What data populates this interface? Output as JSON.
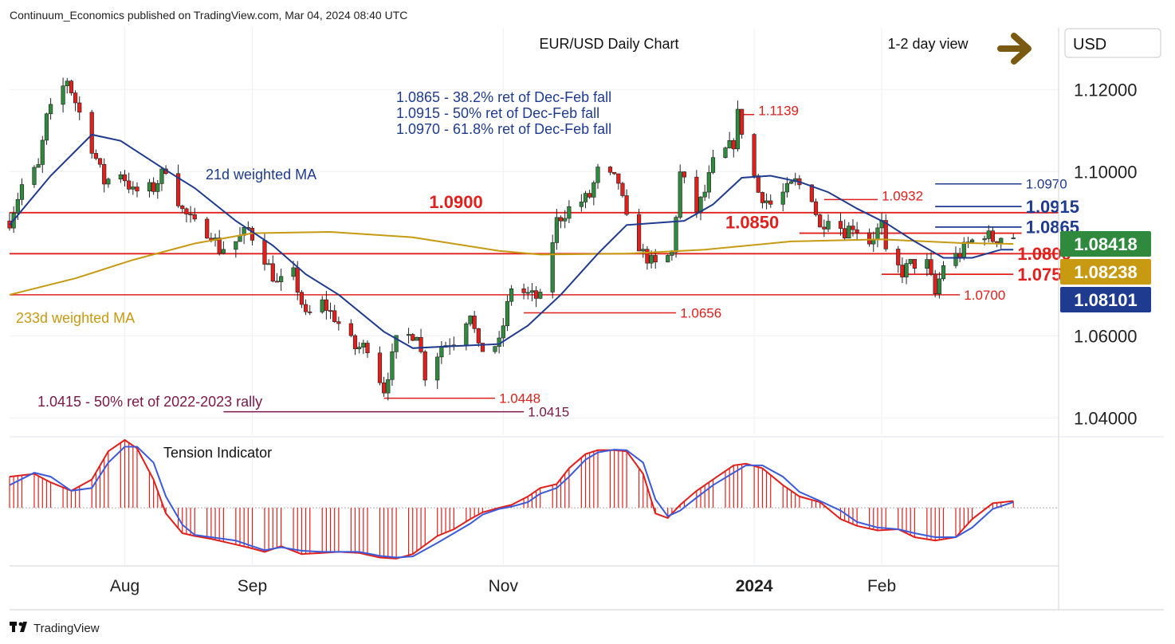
{
  "header": {
    "publisher": "Continuum_Economics published on TradingView.com, Mar 04, 2024 08:40 UTC"
  },
  "footer": {
    "brand": "TradingView"
  },
  "colors": {
    "red": "#e0201c",
    "navy": "#1f3b8f",
    "gold": "#c79a12",
    "maroon": "#7a1748",
    "up": "#2f8a3e",
    "arrow": "#7a5a10"
  },
  "icons": [
    "tradingview-logo-icon",
    "right-arrow-icon"
  ],
  "chart_data": {
    "type": "candlestick",
    "title": "EUR/USD Daily Chart",
    "view_label": "1-2 day view",
    "currency": "USD",
    "ylim": [
      1.036,
      1.135
    ],
    "yticks": [
      {
        "value": 1.12,
        "label": "1.12000"
      },
      {
        "value": 1.1,
        "label": "1.10000"
      },
      {
        "value": 1.06,
        "label": "1.06000"
      },
      {
        "value": 1.04,
        "label": "1.04000"
      }
    ],
    "xticks": [
      {
        "date": "2023-08-01",
        "label": "Aug",
        "bold": false
      },
      {
        "date": "2023-09-01",
        "label": "Sep",
        "bold": false
      },
      {
        "date": "2023-11-01",
        "label": "Nov",
        "bold": false
      },
      {
        "date": "2024-01-01",
        "label": "2024",
        "bold": true
      },
      {
        "date": "2024-02-01",
        "label": "Feb",
        "bold": false
      }
    ],
    "x_start": "2023-07-04",
    "x_end": "2024-03-15",
    "close_path": [
      [
        "2023-07-04",
        1.088
      ],
      [
        "2023-07-07",
        1.0967
      ],
      [
        "2023-07-11",
        1.101
      ],
      [
        "2023-07-13",
        1.113
      ],
      [
        "2023-07-18",
        1.1225
      ],
      [
        "2023-07-20",
        1.117
      ],
      [
        "2023-07-24",
        1.106
      ],
      [
        "2023-07-27",
        1.0975
      ],
      [
        "2023-07-31",
        1.1
      ],
      [
        "2023-08-03",
        1.095
      ],
      [
        "2023-08-08",
        1.096
      ],
      [
        "2023-08-11",
        1.101
      ],
      [
        "2023-08-15",
        1.0905
      ],
      [
        "2023-08-18",
        1.087
      ],
      [
        "2023-08-22",
        1.085
      ],
      [
        "2023-08-24",
        1.081
      ],
      [
        "2023-08-28",
        1.083
      ],
      [
        "2023-08-31",
        1.086
      ],
      [
        "2023-09-04",
        1.079
      ],
      [
        "2023-09-07",
        1.0725
      ],
      [
        "2023-09-11",
        1.075
      ],
      [
        "2023-09-14",
        1.0645
      ],
      [
        "2023-09-18",
        1.068
      ],
      [
        "2023-09-21",
        1.0645
      ],
      [
        "2023-09-26",
        1.057
      ],
      [
        "2023-09-29",
        1.0575
      ],
      [
        "2023-10-03",
        1.047
      ],
      [
        "2023-10-06",
        1.0585
      ],
      [
        "2023-10-11",
        1.061
      ],
      [
        "2023-10-13",
        1.0505
      ],
      [
        "2023-10-17",
        1.0575
      ],
      [
        "2023-10-20",
        1.059
      ],
      [
        "2023-10-24",
        1.066
      ],
      [
        "2023-10-26",
        1.0565
      ],
      [
        "2023-10-31",
        1.058
      ],
      [
        "2023-11-03",
        1.072
      ],
      [
        "2023-11-07",
        1.07
      ],
      [
        "2023-11-10",
        1.069
      ],
      [
        "2023-11-14",
        1.088
      ],
      [
        "2023-11-17",
        1.091
      ],
      [
        "2023-11-22",
        1.094
      ],
      [
        "2023-11-24",
        1.1
      ],
      [
        "2023-11-29",
        1.0975
      ],
      [
        "2023-12-01",
        1.088
      ],
      [
        "2023-12-05",
        1.08
      ],
      [
        "2023-12-08",
        1.077
      ],
      [
        "2023-12-12",
        1.08
      ],
      [
        "2023-12-14",
        1.0995
      ],
      [
        "2023-12-18",
        1.0905
      ],
      [
        "2023-12-20",
        1.095
      ],
      [
        "2023-12-22",
        1.102
      ],
      [
        "2023-12-27",
        1.107
      ],
      [
        "2023-12-28",
        1.1139
      ],
      [
        "2024-01-02",
        1.095
      ],
      [
        "2024-01-05",
        1.092
      ],
      [
        "2024-01-09",
        1.0955
      ],
      [
        "2024-01-11",
        1.0975
      ],
      [
        "2024-01-15",
        1.094
      ],
      [
        "2024-01-17",
        1.086
      ],
      [
        "2024-01-19",
        1.0895
      ],
      [
        "2024-01-23",
        1.0855
      ],
      [
        "2024-01-25",
        1.087
      ],
      [
        "2024-01-29",
        1.083
      ],
      [
        "2024-02-01",
        1.087
      ],
      [
        "2024-02-02",
        1.0795
      ],
      [
        "2024-02-06",
        1.0755
      ],
      [
        "2024-02-08",
        1.0775
      ],
      [
        "2024-02-12",
        1.0775
      ],
      [
        "2024-02-14",
        1.07
      ],
      [
        "2024-02-16",
        1.0775
      ],
      [
        "2024-02-20",
        1.08
      ],
      [
        "2024-02-22",
        1.0825
      ],
      [
        "2024-02-26",
        1.085
      ],
      [
        "2024-02-28",
        1.0835
      ],
      [
        "2024-03-01",
        1.0842
      ],
      [
        "2024-03-04",
        1.0842
      ]
    ],
    "ma21_path": [
      [
        "2023-07-04",
        1.087
      ],
      [
        "2023-07-14",
        1.099
      ],
      [
        "2023-07-24",
        1.109
      ],
      [
        "2023-07-31",
        1.1075
      ],
      [
        "2023-08-10",
        1.101
      ],
      [
        "2023-08-18",
        1.096
      ],
      [
        "2023-08-28",
        1.088
      ],
      [
        "2023-09-06",
        1.082
      ],
      [
        "2023-09-14",
        1.075
      ],
      [
        "2023-09-22",
        1.07
      ],
      [
        "2023-10-03",
        1.061
      ],
      [
        "2023-10-10",
        1.057
      ],
      [
        "2023-10-20",
        1.0575
      ],
      [
        "2023-10-31",
        1.058
      ],
      [
        "2023-11-07",
        1.0625
      ],
      [
        "2023-11-15",
        1.07
      ],
      [
        "2023-11-24",
        1.08
      ],
      [
        "2023-12-01",
        1.087
      ],
      [
        "2023-12-08",
        1.0875
      ],
      [
        "2023-12-15",
        1.088
      ],
      [
        "2023-12-22",
        1.092
      ],
      [
        "2023-12-29",
        1.0985
      ],
      [
        "2024-01-05",
        1.099
      ],
      [
        "2024-01-12",
        1.0975
      ],
      [
        "2024-01-19",
        1.095
      ],
      [
        "2024-01-26",
        1.091
      ],
      [
        "2024-02-02",
        1.0875
      ],
      [
        "2024-02-09",
        1.083
      ],
      [
        "2024-02-16",
        1.079
      ],
      [
        "2024-02-23",
        1.079
      ],
      [
        "2024-03-01",
        1.081
      ],
      [
        "2024-03-04",
        1.081
      ]
    ],
    "ma233_path": [
      [
        "2023-07-04",
        1.07
      ],
      [
        "2023-07-20",
        1.074
      ],
      [
        "2023-08-03",
        1.0785
      ],
      [
        "2023-08-18",
        1.0825
      ],
      [
        "2023-09-01",
        1.085
      ],
      [
        "2023-09-20",
        1.0853
      ],
      [
        "2023-10-10",
        1.084
      ],
      [
        "2023-10-31",
        1.0807
      ],
      [
        "2023-11-10",
        1.0798
      ],
      [
        "2023-12-01",
        1.08
      ],
      [
        "2023-12-20",
        1.081
      ],
      [
        "2024-01-10",
        1.083
      ],
      [
        "2024-02-01",
        1.0835
      ],
      [
        "2024-02-20",
        1.0826
      ],
      [
        "2024-03-04",
        1.0824
      ]
    ],
    "price_tags": [
      {
        "value": 1.08418,
        "label": "1.08418",
        "color": "#2f8a3e"
      },
      {
        "value": 1.08238,
        "label": "1.08238",
        "color": "#c79a12"
      },
      {
        "value": 1.08101,
        "label": "1.08101",
        "color": "#1f3b8f"
      }
    ],
    "levels": [
      {
        "value": 1.09,
        "label": "1.0900",
        "color": "#e0201c",
        "from": "2023-07-04",
        "to": "2024-03-15",
        "label_date": "2023-10-14",
        "size": 22,
        "bold": true
      },
      {
        "value": 1.08,
        "label": "1.0800",
        "color": "#e0201c",
        "from": "2023-07-04",
        "to": "2024-03-15",
        "label_date": "2024-03-05",
        "size": 22,
        "bold": true
      },
      {
        "value": 1.07,
        "label": "1.0700",
        "color": "#e0201c",
        "from": "2023-07-04",
        "to": "2024-02-20",
        "label_date": "2024-02-21",
        "size": 17,
        "bold": false
      },
      {
        "value": 1.085,
        "label": "1.0850",
        "color": "#e0201c",
        "from": "2024-01-12",
        "to": "2024-03-06",
        "label_date": "2023-12-25",
        "size": 22,
        "bold": true
      },
      {
        "value": 1.075,
        "label": "1.0750",
        "color": "#e0201c",
        "from": "2024-02-01",
        "to": "2024-03-04",
        "label_date": "2024-03-05",
        "size": 22,
        "bold": true
      },
      {
        "value": 1.0932,
        "label": "1.0932",
        "color": "#e0201c",
        "from": "2024-01-18",
        "to": "2024-01-31",
        "label_date": "2024-02-01",
        "size": 17,
        "bold": false
      },
      {
        "value": 1.1139,
        "label": "1.1139",
        "color": "#e0201c",
        "from": "2023-12-28",
        "to": "2024-01-01",
        "label_date": "2024-01-02",
        "size": 17,
        "bold": false
      },
      {
        "value": 1.0656,
        "label": "1.0656",
        "color": "#e0201c",
        "from": "2023-11-06",
        "to": "2023-12-13",
        "label_date": "2023-12-14",
        "size": 17,
        "bold": false
      },
      {
        "value": 1.0448,
        "label": "1.0448",
        "color": "#e0201c",
        "from": "2023-10-03",
        "to": "2023-10-30",
        "label_date": "2023-10-31",
        "size": 17,
        "bold": false
      },
      {
        "value": 1.0415,
        "label": "1.0415",
        "color": "#7a1748",
        "from": "2023-08-25",
        "to": "2023-11-06",
        "label_date": "2023-11-07",
        "size": 17,
        "bold": false
      },
      {
        "value": 1.097,
        "label": "1.0970",
        "color": "#1f3b8f",
        "from": "2024-02-14",
        "to": "2024-03-06",
        "label_date": "2024-03-07",
        "size": 17,
        "bold": false
      },
      {
        "value": 1.0915,
        "label": "1.0915",
        "color": "#1f3b8f",
        "from": "2024-02-14",
        "to": "2024-03-06",
        "label_date": "2024-03-07",
        "size": 22,
        "bold": true
      },
      {
        "value": 1.0865,
        "label": "1.0865",
        "color": "#1f3b8f",
        "from": "2024-02-14",
        "to": "2024-03-06",
        "label_date": "2024-03-07",
        "size": 22,
        "bold": true
      }
    ],
    "annotations": [
      {
        "text": "1.0865 - 38.2% ret of Dec-Feb fall",
        "color": "#1f3b8f"
      },
      {
        "text": "1.0915 - 50% ret of Dec-Feb fall",
        "color": "#1f3b8f"
      },
      {
        "text": "1.0970 - 61.8% ret of Dec-Feb fall",
        "color": "#1f3b8f"
      },
      {
        "text": "1.0415 - 50% ret of 2022-2023 rally",
        "color": "#7a1748"
      },
      {
        "text": "21d weighted MA",
        "color": "#1f3b8f"
      },
      {
        "text": "233d weighted MA",
        "color": "#c79a12"
      }
    ],
    "indicator": {
      "title": "Tension Indicator",
      "ylim": [
        -1.0,
        1.2
      ],
      "red_path": [
        [
          "2023-07-04",
          0.55
        ],
        [
          "2023-07-10",
          0.6
        ],
        [
          "2023-07-14",
          0.45
        ],
        [
          "2023-07-19",
          0.3
        ],
        [
          "2023-07-24",
          0.5
        ],
        [
          "2023-07-28",
          1.0
        ],
        [
          "2023-08-01",
          1.2
        ],
        [
          "2023-08-04",
          1.05
        ],
        [
          "2023-08-08",
          0.5
        ],
        [
          "2023-08-11",
          -0.1
        ],
        [
          "2023-08-15",
          -0.45
        ],
        [
          "2023-08-18",
          -0.5
        ],
        [
          "2023-08-22",
          -0.55
        ],
        [
          "2023-08-28",
          -0.65
        ],
        [
          "2023-09-01",
          -0.72
        ],
        [
          "2023-09-04",
          -0.78
        ],
        [
          "2023-09-08",
          -0.68
        ],
        [
          "2023-09-13",
          -0.82
        ],
        [
          "2023-09-18",
          -0.8
        ],
        [
          "2023-09-22",
          -0.78
        ],
        [
          "2023-09-27",
          -0.8
        ],
        [
          "2023-10-02",
          -0.88
        ],
        [
          "2023-10-06",
          -0.9
        ],
        [
          "2023-10-10",
          -0.82
        ],
        [
          "2023-10-16",
          -0.5
        ],
        [
          "2023-10-20",
          -0.38
        ],
        [
          "2023-10-24",
          -0.2
        ],
        [
          "2023-10-27",
          -0.08
        ],
        [
          "2023-10-31",
          0.0
        ],
        [
          "2023-11-03",
          0.05
        ],
        [
          "2023-11-07",
          0.2
        ],
        [
          "2023-11-10",
          0.35
        ],
        [
          "2023-11-14",
          0.42
        ],
        [
          "2023-11-17",
          0.7
        ],
        [
          "2023-11-21",
          0.95
        ],
        [
          "2023-11-24",
          1.02
        ],
        [
          "2023-11-28",
          1.02
        ],
        [
          "2023-12-01",
          1.0
        ],
        [
          "2023-12-05",
          0.6
        ],
        [
          "2023-12-08",
          -0.1
        ],
        [
          "2023-12-11",
          -0.18
        ],
        [
          "2023-12-14",
          0.05
        ],
        [
          "2023-12-18",
          0.3
        ],
        [
          "2023-12-22",
          0.5
        ],
        [
          "2023-12-27",
          0.75
        ],
        [
          "2023-12-30",
          0.78
        ],
        [
          "2024-01-03",
          0.7
        ],
        [
          "2024-01-08",
          0.4
        ],
        [
          "2024-01-12",
          0.2
        ],
        [
          "2024-01-17",
          0.1
        ],
        [
          "2024-01-22",
          -0.2
        ],
        [
          "2024-01-26",
          -0.32
        ],
        [
          "2024-01-31",
          -0.4
        ],
        [
          "2024-02-05",
          -0.38
        ],
        [
          "2024-02-09",
          -0.52
        ],
        [
          "2024-02-14",
          -0.58
        ],
        [
          "2024-02-19",
          -0.52
        ],
        [
          "2024-02-23",
          -0.2
        ],
        [
          "2024-02-28",
          0.08
        ],
        [
          "2024-03-04",
          0.12
        ]
      ],
      "blue_path": [
        [
          "2023-07-04",
          0.4
        ],
        [
          "2023-07-10",
          0.62
        ],
        [
          "2023-07-14",
          0.55
        ],
        [
          "2023-07-19",
          0.3
        ],
        [
          "2023-07-24",
          0.35
        ],
        [
          "2023-07-28",
          0.8
        ],
        [
          "2023-08-01",
          1.08
        ],
        [
          "2023-08-04",
          1.08
        ],
        [
          "2023-08-08",
          0.8
        ],
        [
          "2023-08-11",
          0.2
        ],
        [
          "2023-08-15",
          -0.3
        ],
        [
          "2023-08-18",
          -0.48
        ],
        [
          "2023-08-22",
          -0.52
        ],
        [
          "2023-08-28",
          -0.58
        ],
        [
          "2023-09-01",
          -0.68
        ],
        [
          "2023-09-04",
          -0.75
        ],
        [
          "2023-09-08",
          -0.7
        ],
        [
          "2023-09-13",
          -0.76
        ],
        [
          "2023-09-18",
          -0.78
        ],
        [
          "2023-09-22",
          -0.78
        ],
        [
          "2023-09-27",
          -0.78
        ],
        [
          "2023-10-02",
          -0.85
        ],
        [
          "2023-10-06",
          -0.88
        ],
        [
          "2023-10-10",
          -0.86
        ],
        [
          "2023-10-16",
          -0.62
        ],
        [
          "2023-10-20",
          -0.45
        ],
        [
          "2023-10-24",
          -0.28
        ],
        [
          "2023-10-27",
          -0.12
        ],
        [
          "2023-10-31",
          -0.02
        ],
        [
          "2023-11-03",
          0.02
        ],
        [
          "2023-11-07",
          0.1
        ],
        [
          "2023-11-10",
          0.25
        ],
        [
          "2023-11-14",
          0.35
        ],
        [
          "2023-11-17",
          0.55
        ],
        [
          "2023-11-21",
          0.85
        ],
        [
          "2023-11-24",
          0.98
        ],
        [
          "2023-11-28",
          1.03
        ],
        [
          "2023-12-01",
          1.02
        ],
        [
          "2023-12-05",
          0.8
        ],
        [
          "2023-12-08",
          0.15
        ],
        [
          "2023-12-11",
          -0.15
        ],
        [
          "2023-12-14",
          -0.05
        ],
        [
          "2023-12-18",
          0.18
        ],
        [
          "2023-12-22",
          0.4
        ],
        [
          "2023-12-27",
          0.62
        ],
        [
          "2023-12-30",
          0.75
        ],
        [
          "2024-01-03",
          0.75
        ],
        [
          "2024-01-08",
          0.55
        ],
        [
          "2024-01-12",
          0.28
        ],
        [
          "2024-01-17",
          0.12
        ],
        [
          "2024-01-22",
          -0.05
        ],
        [
          "2024-01-26",
          -0.25
        ],
        [
          "2024-01-31",
          -0.35
        ],
        [
          "2024-02-05",
          -0.38
        ],
        [
          "2024-02-09",
          -0.45
        ],
        [
          "2024-02-14",
          -0.52
        ],
        [
          "2024-02-19",
          -0.52
        ],
        [
          "2024-02-23",
          -0.35
        ],
        [
          "2024-02-28",
          -0.02
        ],
        [
          "2024-03-04",
          0.1
        ]
      ]
    }
  }
}
